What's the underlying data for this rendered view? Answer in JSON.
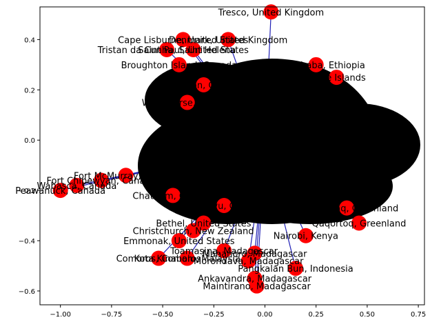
{
  "chart_data": {
    "type": "network-graph",
    "title": "",
    "xlabel": "",
    "ylabel": "",
    "xlim": [
      -1.1,
      0.78
    ],
    "ylim": [
      -0.655,
      0.53
    ],
    "x_ticks": [
      -1.0,
      -0.75,
      -0.5,
      -0.25,
      0.0,
      0.25,
      0.5,
      0.75
    ],
    "x_tick_labels": [
      "−1.00",
      "−0.75",
      "−0.50",
      "−0.25",
      "0.00",
      "0.25",
      "0.50",
      "0.75"
    ],
    "y_ticks": [
      0.4,
      0.2,
      0.0,
      -0.2,
      -0.4,
      -0.6
    ],
    "y_tick_labels": [
      "0.4",
      "0.2",
      "0.0",
      "−0.2",
      "−0.4",
      "−0.6"
    ],
    "grid": false,
    "node_color": "#ff0000",
    "edge_color": "#1f1fb4",
    "dense_core_color": "#000000",
    "nodes": [
      {
        "label": "Tresco, United Kingdom",
        "x": 0.03,
        "y": 0.51
      },
      {
        "label": "Cape Lisburne, United States",
        "x": -0.4,
        "y": 0.4
      },
      {
        "label": "Denmark, United Kingdom",
        "x": -0.18,
        "y": 0.4
      },
      {
        "label": "Tristan da Cunha, Saint Helena",
        "x": -0.48,
        "y": 0.36
      },
      {
        "label": "Saint Paul, United States",
        "x": -0.35,
        "y": 0.36
      },
      {
        "label": "Broughton Island, Canada",
        "x": -0.42,
        "y": 0.3
      },
      {
        "label": "Griseton, Canada",
        "x": -0.3,
        "y": 0.22
      },
      {
        "label": "Addis Ababa, Ethiopia",
        "x": 0.25,
        "y": 0.3
      },
      {
        "label": "Faroe Islands",
        "x": 0.35,
        "y": 0.25
      },
      {
        "label": "Whitehorse, Canada",
        "x": -0.38,
        "y": 0.15
      },
      {
        "label": "Fort McMurray, Canada",
        "x": -0.68,
        "y": -0.14
      },
      {
        "label": "Fort Chipewyan, Canada",
        "x": -0.8,
        "y": -0.16
      },
      {
        "label": "Wabasca, Canada",
        "x": -0.92,
        "y": -0.18
      },
      {
        "label": "Peawanuck, Canada",
        "x": -1.0,
        "y": -0.2
      },
      {
        "label": "Chatham, Canada",
        "x": -0.45,
        "y": -0.22
      },
      {
        "label": "Bukavu, Congo",
        "x": -0.2,
        "y": -0.26
      },
      {
        "label": "Bethel, United States",
        "x": -0.3,
        "y": -0.33
      },
      {
        "label": "Narsarsuaq, Greenland",
        "x": 0.4,
        "y": -0.27
      },
      {
        "label": "Qaqortoq, Greenland",
        "x": 0.46,
        "y": -0.33
      },
      {
        "label": "Christchurch, New Zealand",
        "x": -0.35,
        "y": -0.36
      },
      {
        "label": "Emmonak, United States",
        "x": -0.42,
        "y": -0.4
      },
      {
        "label": "Nairobi, Kenya",
        "x": 0.2,
        "y": -0.38
      },
      {
        "label": "Toamasina, Madagascar",
        "x": -0.2,
        "y": -0.44
      },
      {
        "label": "Mahanoro, Madagascar",
        "x": -0.05,
        "y": -0.45
      },
      {
        "label": "Comoros, Comoros",
        "x": -0.52,
        "y": -0.47
      },
      {
        "label": "Kota Kinabalu, Malaysia",
        "x": -0.38,
        "y": -0.47
      },
      {
        "label": "Morondava, Madagascar",
        "x": -0.08,
        "y": -0.48
      },
      {
        "label": "Pangkalan Bun, Indonesia",
        "x": 0.15,
        "y": -0.51
      },
      {
        "label": "Ankavandra, Madagascar",
        "x": -0.05,
        "y": -0.55
      },
      {
        "label": "Maintirano, Madagascar",
        "x": -0.04,
        "y": -0.58
      }
    ]
  }
}
